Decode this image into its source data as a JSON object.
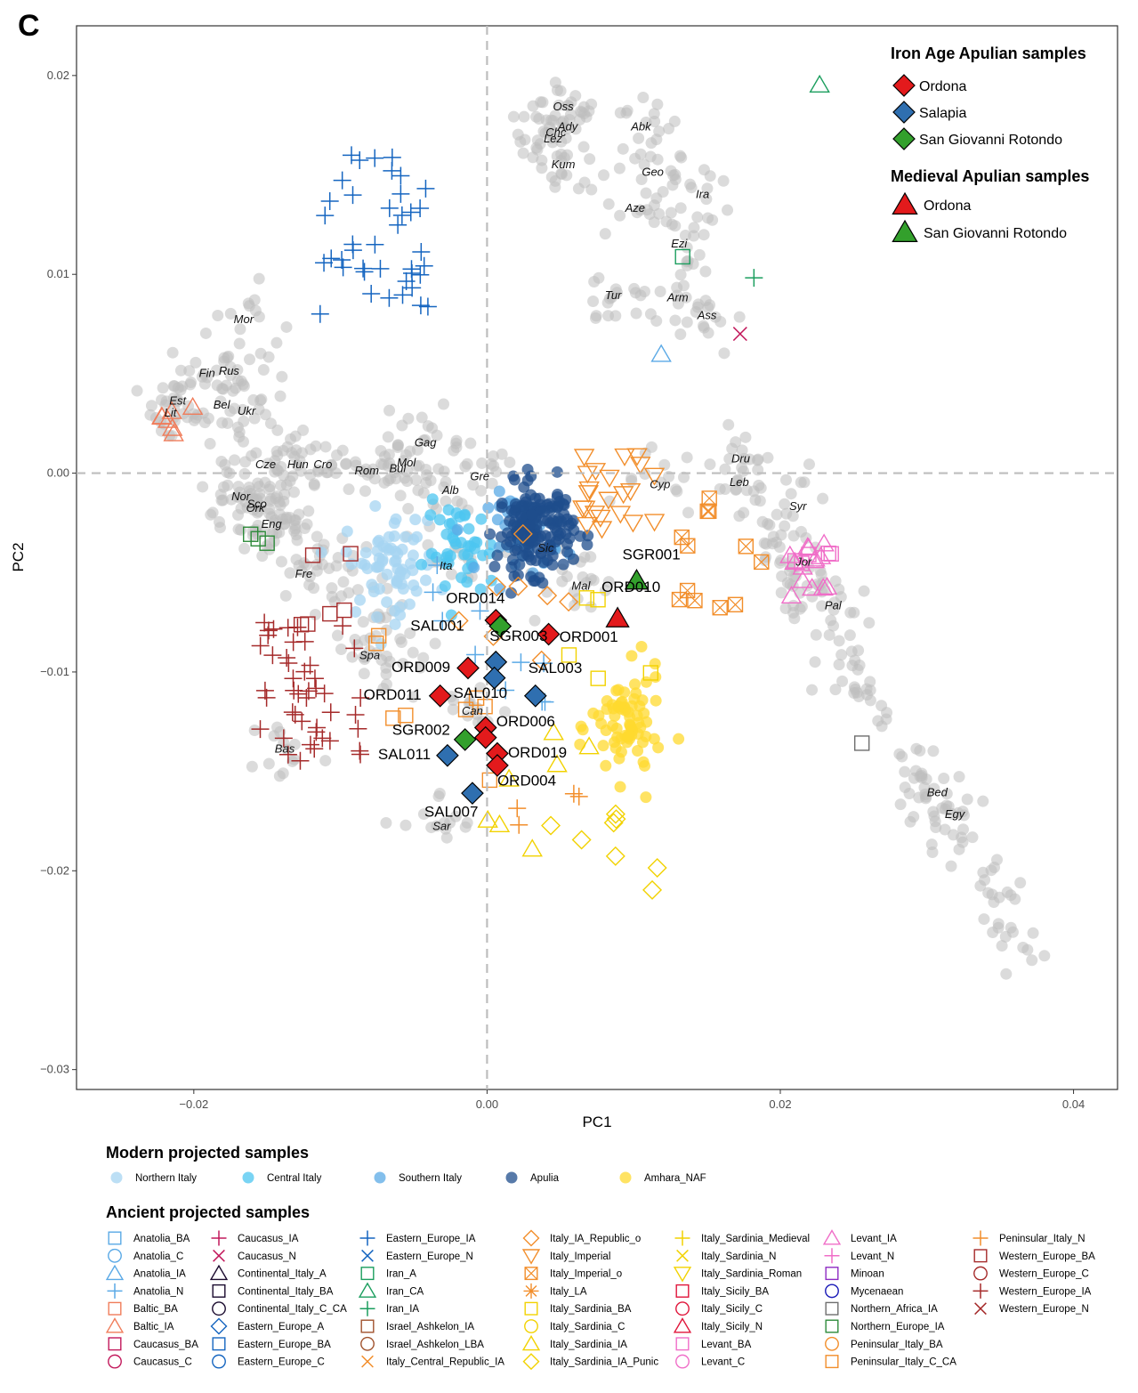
{
  "panel_label": "C",
  "colors": {
    "background_points": "#bdbdbd",
    "ordona": "#e31a1c",
    "salapia": "#2f6fb0",
    "san_giovanni": "#33a02c",
    "northern_italy": "#a6d4f2",
    "central_italy": "#4cc6f0",
    "southern_italy": "#5aa9e6",
    "apulia": "#1f4e8c",
    "amhara_naf": "#ffd92f"
  },
  "chart_data": {
    "type": "scatter",
    "xlabel": "PC1",
    "ylabel": "PC2",
    "xlim": [
      -0.028,
      0.043
    ],
    "ylim": [
      -0.031,
      0.0225
    ],
    "xticks": [
      -0.02,
      0.0,
      0.02,
      0.04
    ],
    "xtick_labels": [
      "−0.02",
      "0.00",
      "0.02",
      "0.04"
    ],
    "yticks": [
      0.02,
      0.01,
      0.0,
      -0.01,
      -0.02,
      -0.03
    ],
    "ytick_labels": [
      "0.02",
      "0.01",
      "0.00",
      "−0.01",
      "−0.02",
      "−0.03"
    ],
    "reference_lines": {
      "x": 0.0,
      "y": 0.0,
      "style": "dashed"
    },
    "reference_population_labels": [
      {
        "text": "Oss",
        "x": 0.0052,
        "y": 0.0184
      },
      {
        "text": "Ady",
        "x": 0.0055,
        "y": 0.0174
      },
      {
        "text": "Chc",
        "x": 0.0047,
        "y": 0.0171
      },
      {
        "text": "Lez",
        "x": 0.0045,
        "y": 0.0168
      },
      {
        "text": "Abk",
        "x": 0.0105,
        "y": 0.0174
      },
      {
        "text": "Kum",
        "x": 0.0052,
        "y": 0.0155
      },
      {
        "text": "Geo",
        "x": 0.0113,
        "y": 0.0151
      },
      {
        "text": "Ira",
        "x": 0.0147,
        "y": 0.014
      },
      {
        "text": "Aze",
        "x": 0.0101,
        "y": 0.0133
      },
      {
        "text": "Ezi",
        "x": 0.0131,
        "y": 0.0115
      },
      {
        "text": "Tur",
        "x": 0.0086,
        "y": 0.0089
      },
      {
        "text": "Arm",
        "x": 0.013,
        "y": 0.0088
      },
      {
        "text": "Ass",
        "x": 0.015,
        "y": 0.0079
      },
      {
        "text": "Mor",
        "x": -0.0166,
        "y": 0.0077
      },
      {
        "text": "Fin",
        "x": -0.0191,
        "y": 0.005
      },
      {
        "text": "Rus",
        "x": -0.0176,
        "y": 0.0051
      },
      {
        "text": "Est",
        "x": -0.0211,
        "y": 0.0036
      },
      {
        "text": "Bel",
        "x": -0.0181,
        "y": 0.0034
      },
      {
        "text": "Ukr",
        "x": -0.0164,
        "y": 0.0031
      },
      {
        "text": "Lit",
        "x": -0.0216,
        "y": 0.003
      },
      {
        "text": "Gag",
        "x": -0.0042,
        "y": 0.0015
      },
      {
        "text": "Dru",
        "x": 0.0173,
        "y": 0.0007
      },
      {
        "text": "Cze",
        "x": -0.0151,
        "y": 0.0004
      },
      {
        "text": "Hun",
        "x": -0.0129,
        "y": 0.0004
      },
      {
        "text": "Cro",
        "x": -0.0112,
        "y": 0.0004
      },
      {
        "text": "Rom",
        "x": -0.0082,
        "y": 0.0001
      },
      {
        "text": "Bul",
        "x": -0.0061,
        "y": 0.0002
      },
      {
        "text": "Mol",
        "x": -0.0055,
        "y": 0.0005
      },
      {
        "text": "Gre",
        "x": -0.0005,
        "y": -0.0002
      },
      {
        "text": "Cyp",
        "x": 0.0118,
        "y": -0.0006
      },
      {
        "text": "Leb",
        "x": 0.0172,
        "y": -0.0005
      },
      {
        "text": "Alb",
        "x": -0.0025,
        "y": -0.0009
      },
      {
        "text": "Nor",
        "x": -0.0168,
        "y": -0.0012
      },
      {
        "text": "Sco",
        "x": -0.0157,
        "y": -0.0016
      },
      {
        "text": "Ork",
        "x": -0.0158,
        "y": -0.0018
      },
      {
        "text": "Syr",
        "x": 0.0212,
        "y": -0.0017
      },
      {
        "text": "Eng",
        "x": -0.0147,
        "y": -0.0026
      },
      {
        "text": "Sic",
        "x": 0.004,
        "y": -0.0038
      },
      {
        "text": "Ita",
        "x": -0.0028,
        "y": -0.0047
      },
      {
        "text": "Jor",
        "x": 0.0216,
        "y": -0.0045
      },
      {
        "text": "Fre",
        "x": -0.0125,
        "y": -0.0051
      },
      {
        "text": "Mal",
        "x": 0.0064,
        "y": -0.0057
      },
      {
        "text": "Pal",
        "x": 0.0236,
        "y": -0.0067
      },
      {
        "text": "Spa",
        "x": -0.008,
        "y": -0.0092
      },
      {
        "text": "Can",
        "x": -0.001,
        "y": -0.012
      },
      {
        "text": "Bas",
        "x": -0.0138,
        "y": -0.0139
      },
      {
        "text": "Bed",
        "x": 0.0307,
        "y": -0.0161
      },
      {
        "text": "Egy",
        "x": 0.0319,
        "y": -0.0172
      },
      {
        "text": "Sar",
        "x": -0.0031,
        "y": -0.0178
      }
    ],
    "series": [
      {
        "name": "Ordona",
        "period": "Iron Age",
        "marker": "diamond",
        "color": "#e31a1c",
        "points": [
          {
            "label": "ORD014",
            "x": 0.0006,
            "y": -0.0074
          },
          {
            "label": "ORD001",
            "x": 0.0042,
            "y": -0.0081
          },
          {
            "label": "ORD009",
            "x": -0.0013,
            "y": -0.0098
          },
          {
            "label": "ORD011",
            "x": -0.0032,
            "y": -0.0112
          },
          {
            "label": "ORD006",
            "x": -0.0001,
            "y": -0.0128
          },
          {
            "label": "",
            "x": -0.0001,
            "y": -0.0133
          },
          {
            "label": "ORD019",
            "x": 0.0007,
            "y": -0.0141
          },
          {
            "label": "ORD004",
            "x": 0.0007,
            "y": -0.0147
          }
        ]
      },
      {
        "name": "Salapia",
        "period": "Iron Age",
        "marker": "diamond",
        "color": "#2f6fb0",
        "points": [
          {
            "label": "SAL001",
            "x": 0.0006,
            "y": -0.0095
          },
          {
            "label": "SAL010",
            "x": 0.0005,
            "y": -0.0103
          },
          {
            "label": "SAL003",
            "x": 0.0033,
            "y": -0.0112
          },
          {
            "label": "SAL011",
            "x": -0.0027,
            "y": -0.0142
          },
          {
            "label": "SAL007",
            "x": -0.001,
            "y": -0.0161
          }
        ]
      },
      {
        "name": "San Giovanni Rotondo",
        "period": "Iron Age",
        "marker": "diamond",
        "color": "#33a02c",
        "points": [
          {
            "label": "SGR003",
            "x": 0.0009,
            "y": -0.0077
          },
          {
            "label": "SGR002",
            "x": -0.0015,
            "y": -0.0134
          }
        ]
      },
      {
        "name": "Ordona",
        "period": "Medieval",
        "marker": "triangle",
        "color": "#e31a1c",
        "points": [
          {
            "label": "ORD010",
            "x": 0.0089,
            "y": -0.0073
          }
        ]
      },
      {
        "name": "San Giovanni Rotondo",
        "period": "Medieval",
        "marker": "triangle",
        "color": "#33a02c",
        "points": [
          {
            "label": "SGR001",
            "x": 0.0102,
            "y": -0.0054
          }
        ]
      }
    ]
  },
  "legend_iron_age": {
    "title": "Iron Age Apulian samples",
    "items": [
      "Ordona",
      "Salapia",
      "San Giovanni Rotondo"
    ]
  },
  "legend_medieval": {
    "title": "Medieval Apulian samples",
    "items": [
      "Ordona",
      "San Giovanni Rotondo"
    ]
  },
  "legend_modern": {
    "title": "Modern projected samples",
    "items": [
      "Northern Italy",
      "Central Italy",
      "Southern Italy",
      "Apulia",
      "Amhara_NAF"
    ]
  },
  "legend_ancient": {
    "title": "Ancient projected samples",
    "columns": [
      [
        "Anatolia_BA",
        "Anatolia_C",
        "Anatolia_IA",
        "Anatolia_N",
        "Baltic_BA",
        "Baltic_IA",
        "Caucasus_BA",
        "Caucasus_C"
      ],
      [
        "Caucasus_IA",
        "Caucasus_N",
        "Continental_Italy_A",
        "Continental_Italy_BA",
        "Continental_Italy_C_CA",
        "Eastern_Europe_A",
        "Eastern_Europe_BA",
        "Eastern_Europe_C"
      ],
      [
        "Eastern_Europe_IA",
        "Eastern_Europe_N",
        "Iran_A",
        "Iran_CA",
        "Iran_IA",
        "Israel_Ashkelon_IA",
        "Israel_Ashkelon_LBA",
        "Italy_Central_Republic_IA"
      ],
      [
        "Italy_IA_Republic_o",
        "Italy_Imperial",
        "Italy_Imperial_o",
        "Italy_LA",
        "Italy_Sardinia_BA",
        "Italy_Sardinia_C",
        "Italy_Sardinia_IA",
        "Italy_Sardinia_IA_Punic"
      ],
      [
        "Italy_Sardinia_Medieval",
        "Italy_Sardinia_N",
        "Italy_Sardinia_Roman",
        "Italy_Sicily_BA",
        "Italy_Sicily_C",
        "Italy_Sicily_N",
        "Levant_BA",
        "Levant_C"
      ],
      [
        "Levant_IA",
        "Levant_N",
        "Minoan",
        "Mycenaean",
        "Northern_Africa_IA",
        "Northern_Europe_IA",
        "Peninsular_Italy_BA",
        "Peninsular_Italy_C_CA"
      ],
      [
        "Peninsular_Italy_N",
        "Western_Europe_BA",
        "Western_Europe_C",
        "Western_Europe_IA",
        "Western_Europe_N"
      ]
    ]
  }
}
